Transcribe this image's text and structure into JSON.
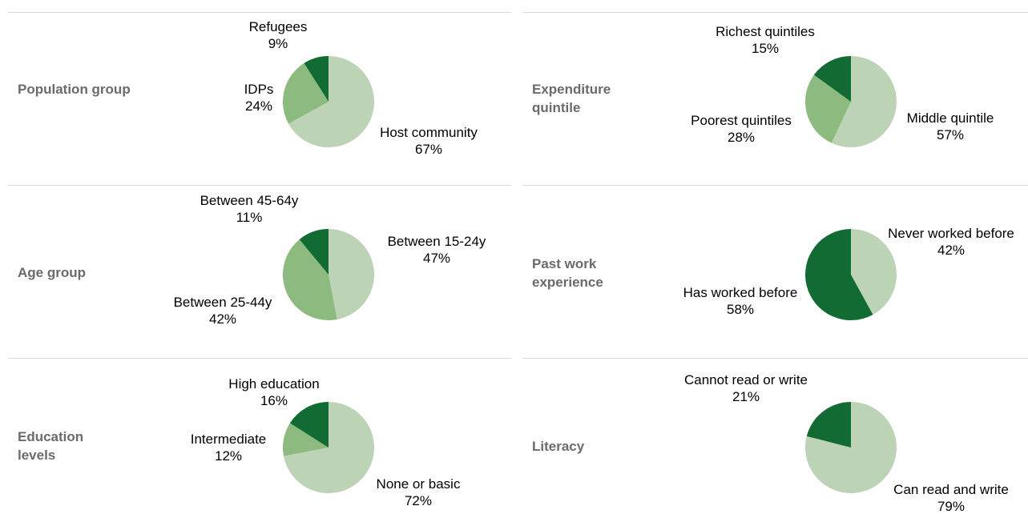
{
  "colors": {
    "light": "#bcd3b5",
    "medium": "#8cba7f",
    "dark": "#116b32",
    "rule": "#d9d9d9",
    "label": "#6b6b6b"
  },
  "chart_data": [
    {
      "type": "pie",
      "title": "Population group",
      "labels": [
        "Host community",
        "IDPs",
        "Refugees"
      ],
      "values": [
        67,
        24,
        9
      ],
      "value_labels": [
        "67%",
        "24%",
        "9%"
      ]
    },
    {
      "type": "pie",
      "title": "Expenditure quintile",
      "labels": [
        "Middle quintile",
        "Poorest quintiles",
        "Richest quintiles"
      ],
      "values": [
        57,
        28,
        15
      ],
      "value_labels": [
        "57%",
        "28%",
        "15%"
      ]
    },
    {
      "type": "pie",
      "title": "Age group",
      "labels": [
        "Between 15-24y",
        "Between 25-44y",
        "Between 45-64y"
      ],
      "values": [
        47,
        42,
        11
      ],
      "value_labels": [
        "47%",
        "42%",
        "11%"
      ]
    },
    {
      "type": "pie",
      "title": "Past work experience",
      "labels": [
        "Never worked before",
        "Has worked before"
      ],
      "values": [
        42,
        58
      ],
      "value_labels": [
        "42%",
        "58%"
      ]
    },
    {
      "type": "pie",
      "title": "Education levels",
      "labels": [
        "None or basic",
        "Intermediate",
        "High education"
      ],
      "values": [
        72,
        12,
        16
      ],
      "value_labels": [
        "72%",
        "12%",
        "16%"
      ]
    },
    {
      "type": "pie",
      "title": "Literacy",
      "labels": [
        "Can read and write",
        "Cannot read or write"
      ],
      "values": [
        79,
        21
      ],
      "value_labels": [
        "79%",
        "21%"
      ]
    }
  ]
}
